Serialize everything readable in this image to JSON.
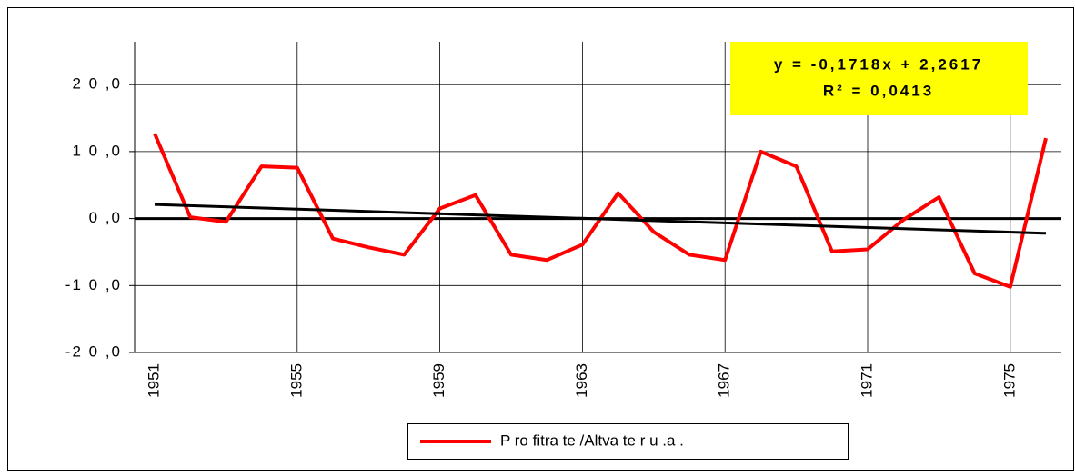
{
  "chart_data": {
    "type": "line",
    "categories": [
      "1951",
      null,
      null,
      null,
      "1955",
      null,
      null,
      null,
      "1959",
      null,
      null,
      null,
      "1963",
      null,
      null,
      null,
      "1967",
      null,
      null,
      null,
      "1971",
      null,
      null,
      null,
      "1975",
      null
    ],
    "series": [
      {
        "name": "P ro fitra te /Altva te r u .a .",
        "color": "#ff0000",
        "values": [
          12.7,
          0.2,
          -0.5,
          7.8,
          7.6,
          -3.0,
          -4.3,
          -5.4,
          1.5,
          3.5,
          -5.4,
          -6.2,
          -3.9,
          3.8,
          -2.0,
          -5.4,
          -6.2,
          10.0,
          7.8,
          -4.9,
          -4.6,
          -0.2,
          3.2,
          -8.2,
          -10.2,
          12.0
        ]
      }
    ],
    "trendline": {
      "color": "#000000",
      "values": [
        2.09,
        -2.2
      ],
      "equation": "y = -0,1718x + 2,2617",
      "r_squared": "R² = 0,0413"
    },
    "ylim": [
      -20,
      26.4
    ],
    "yticks": [
      {
        "value": -20,
        "label": "-2 0 ,0"
      },
      {
        "value": -10,
        "label": "-1 0 ,0"
      },
      {
        "value": 0,
        "label": "0 ,0"
      },
      {
        "value": 10,
        "label": "1 0 ,0"
      },
      {
        "value": 20,
        "label": "2 0 ,0"
      }
    ],
    "grid": true,
    "legend": "bottom"
  }
}
